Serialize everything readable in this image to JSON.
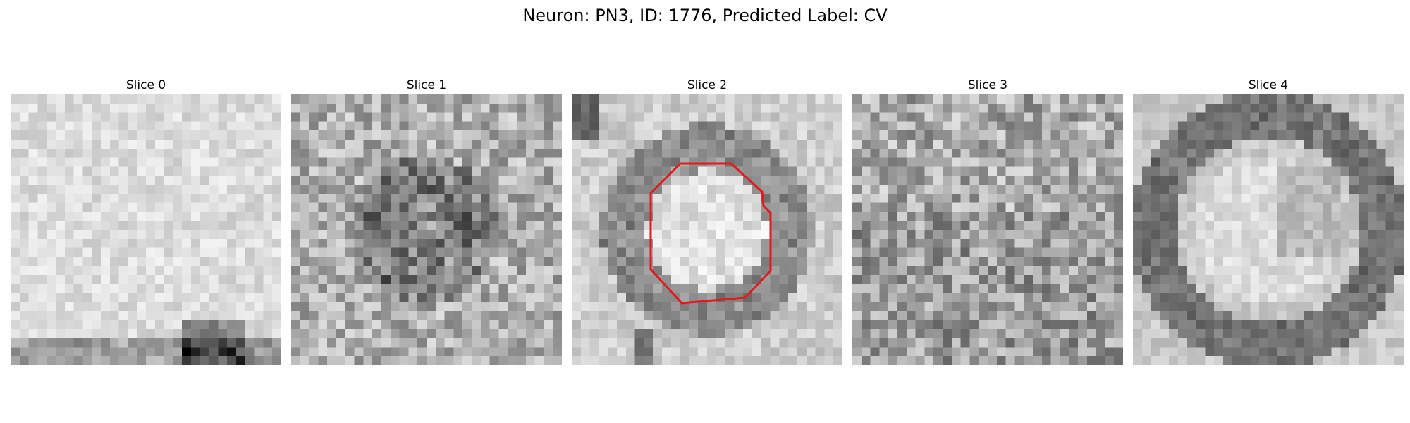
{
  "figure": {
    "title": "Neuron: PN3, ID: 1776, Predicted Label: CV",
    "overlay_color": "#e31a1c"
  },
  "slices": [
    {
      "title": "Slice 0",
      "seed": 11,
      "style": "light-bottom-dark"
    },
    {
      "title": "Slice 1",
      "seed": 23,
      "style": "noisy-center-dark"
    },
    {
      "title": "Slice 2",
      "seed": 37,
      "style": "ring-bright-center"
    },
    {
      "title": "Slice 3",
      "seed": 41,
      "style": "noisy"
    },
    {
      "title": "Slice 4",
      "seed": 53,
      "style": "ring-soft"
    }
  ]
}
